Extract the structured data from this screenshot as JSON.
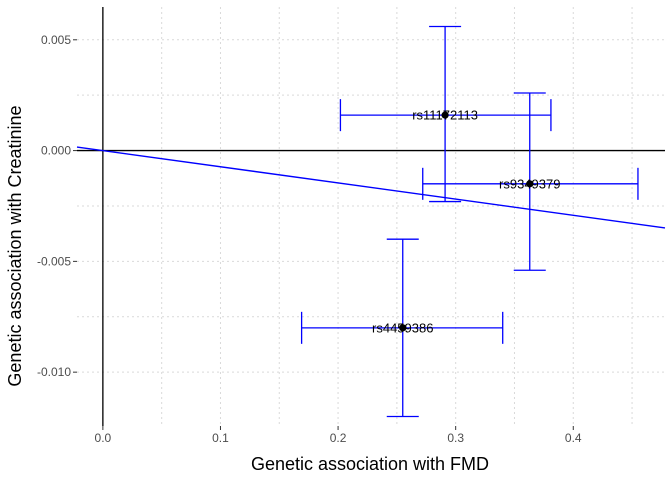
{
  "chart_data": {
    "type": "scatter",
    "title": "",
    "xlabel": "Genetic association with FMD",
    "ylabel": "Genetic association with Creatinine",
    "xlim": [
      -0.022,
      0.478
    ],
    "ylim": [
      -0.01243,
      0.00648
    ],
    "x_ticks": [
      0.0,
      0.1,
      0.2,
      0.3,
      0.4
    ],
    "x_tick_labels": [
      "0.0",
      "0.1",
      "0.2",
      "0.3",
      "0.4"
    ],
    "y_ticks": [
      0.005,
      0.0,
      -0.005,
      -0.01
    ],
    "y_tick_labels": [
      "0.005",
      "0.000",
      "-0.005",
      "-0.010"
    ],
    "grid": true,
    "reference_lines": {
      "x": 0,
      "y": 0
    },
    "fit_line": {
      "slope": -0.0073,
      "intercept": 0,
      "color": "#0000ff"
    },
    "error_bar_color": "#0000ff",
    "point_color": "#000000",
    "points": [
      {
        "label": "rs11172113",
        "x": 0.291,
        "y": 0.0016,
        "x_low": 0.202,
        "x_high": 0.381,
        "y_low": -0.0023,
        "y_high": 0.0056
      },
      {
        "label": "rs9349379",
        "x": 0.363,
        "y": -0.0015,
        "x_low": 0.272,
        "x_high": 0.455,
        "y_low": -0.0054,
        "y_high": 0.0026
      },
      {
        "label": "rs4459386",
        "x": 0.255,
        "y": -0.008,
        "x_low": 0.169,
        "x_high": 0.34,
        "y_low": -0.012,
        "y_high": -0.004
      }
    ]
  }
}
